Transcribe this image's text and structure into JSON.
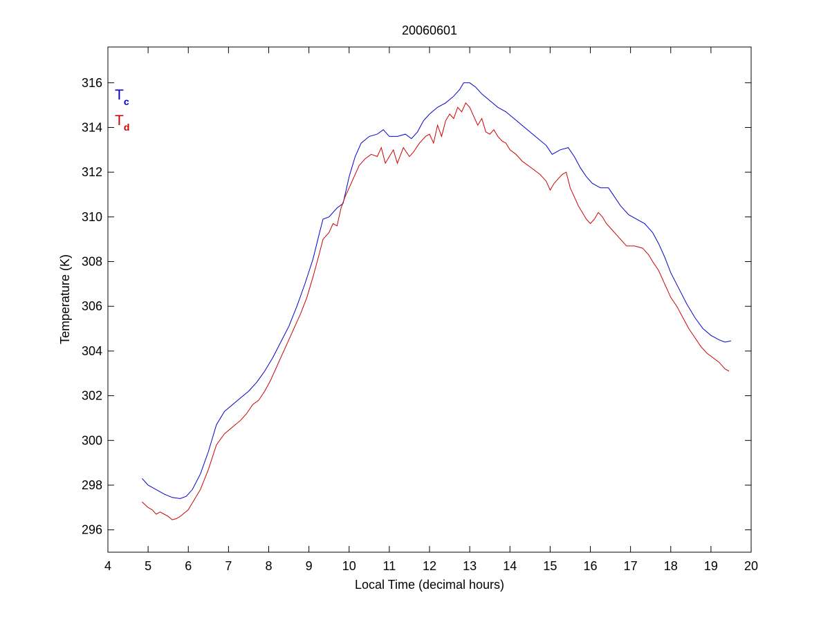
{
  "chart_data": {
    "type": "line",
    "title": "20060601",
    "xlabel": "Local Time (decimal hours)",
    "ylabel": "Temperature (K)",
    "xlim": [
      4,
      20
    ],
    "ylim": [
      295,
      317.6
    ],
    "xticks": [
      4,
      5,
      6,
      7,
      8,
      9,
      10,
      11,
      12,
      13,
      14,
      15,
      16,
      17,
      18,
      19,
      20
    ],
    "yticks": [
      296,
      298,
      300,
      302,
      304,
      306,
      308,
      310,
      312,
      314,
      316
    ],
    "grid": false,
    "legend_position": "top-left",
    "series": [
      {
        "name": "T",
        "subscript": "c",
        "color": "#0000cc",
        "points": [
          [
            4.85,
            298.3
          ],
          [
            5.0,
            298.0
          ],
          [
            5.2,
            297.8
          ],
          [
            5.4,
            297.6
          ],
          [
            5.6,
            297.45
          ],
          [
            5.8,
            297.4
          ],
          [
            5.95,
            297.5
          ],
          [
            6.1,
            297.8
          ],
          [
            6.3,
            298.5
          ],
          [
            6.5,
            299.5
          ],
          [
            6.7,
            300.7
          ],
          [
            6.9,
            301.3
          ],
          [
            7.1,
            301.6
          ],
          [
            7.3,
            301.9
          ],
          [
            7.5,
            302.2
          ],
          [
            7.7,
            302.6
          ],
          [
            7.9,
            303.1
          ],
          [
            8.1,
            303.7
          ],
          [
            8.3,
            304.4
          ],
          [
            8.5,
            305.1
          ],
          [
            8.7,
            306.0
          ],
          [
            8.9,
            307.0
          ],
          [
            9.1,
            308.1
          ],
          [
            9.25,
            309.2
          ],
          [
            9.35,
            309.9
          ],
          [
            9.5,
            310.0
          ],
          [
            9.7,
            310.4
          ],
          [
            9.85,
            310.6
          ],
          [
            10.0,
            311.8
          ],
          [
            10.15,
            312.7
          ],
          [
            10.3,
            313.3
          ],
          [
            10.5,
            313.6
          ],
          [
            10.7,
            313.7
          ],
          [
            10.85,
            313.9
          ],
          [
            11.0,
            313.6
          ],
          [
            11.2,
            313.6
          ],
          [
            11.4,
            313.7
          ],
          [
            11.55,
            313.5
          ],
          [
            11.7,
            313.8
          ],
          [
            11.85,
            314.3
          ],
          [
            12.0,
            314.6
          ],
          [
            12.2,
            314.9
          ],
          [
            12.4,
            315.1
          ],
          [
            12.6,
            315.4
          ],
          [
            12.75,
            315.7
          ],
          [
            12.85,
            316.0
          ],
          [
            13.0,
            316.0
          ],
          [
            13.15,
            315.8
          ],
          [
            13.3,
            315.5
          ],
          [
            13.5,
            315.2
          ],
          [
            13.7,
            314.9
          ],
          [
            13.9,
            314.7
          ],
          [
            14.1,
            314.4
          ],
          [
            14.3,
            314.1
          ],
          [
            14.5,
            313.8
          ],
          [
            14.7,
            313.5
          ],
          [
            14.9,
            313.2
          ],
          [
            15.05,
            312.8
          ],
          [
            15.25,
            313.0
          ],
          [
            15.45,
            313.1
          ],
          [
            15.6,
            312.7
          ],
          [
            15.75,
            312.2
          ],
          [
            15.9,
            311.8
          ],
          [
            16.05,
            311.5
          ],
          [
            16.25,
            311.3
          ],
          [
            16.45,
            311.3
          ],
          [
            16.6,
            310.9
          ],
          [
            16.75,
            310.5
          ],
          [
            16.95,
            310.1
          ],
          [
            17.15,
            309.9
          ],
          [
            17.35,
            309.7
          ],
          [
            17.55,
            309.3
          ],
          [
            17.7,
            308.8
          ],
          [
            17.85,
            308.2
          ],
          [
            18.0,
            307.5
          ],
          [
            18.2,
            306.8
          ],
          [
            18.4,
            306.1
          ],
          [
            18.6,
            305.5
          ],
          [
            18.8,
            305.0
          ],
          [
            19.0,
            304.7
          ],
          [
            19.2,
            304.5
          ],
          [
            19.35,
            304.4
          ],
          [
            19.5,
            304.45
          ]
        ]
      },
      {
        "name": "T",
        "subscript": "d",
        "color": "#cc0000",
        "points": [
          [
            4.85,
            297.25
          ],
          [
            5.0,
            297.0
          ],
          [
            5.1,
            296.9
          ],
          [
            5.2,
            296.7
          ],
          [
            5.3,
            296.8
          ],
          [
            5.4,
            296.7
          ],
          [
            5.5,
            296.6
          ],
          [
            5.6,
            296.45
          ],
          [
            5.7,
            296.5
          ],
          [
            5.8,
            296.6
          ],
          [
            5.9,
            296.75
          ],
          [
            6.0,
            296.9
          ],
          [
            6.1,
            297.2
          ],
          [
            6.3,
            297.8
          ],
          [
            6.5,
            298.7
          ],
          [
            6.7,
            299.8
          ],
          [
            6.9,
            300.3
          ],
          [
            7.1,
            300.6
          ],
          [
            7.3,
            300.9
          ],
          [
            7.45,
            301.2
          ],
          [
            7.6,
            301.6
          ],
          [
            7.75,
            301.8
          ],
          [
            7.9,
            302.2
          ],
          [
            8.05,
            302.7
          ],
          [
            8.2,
            303.3
          ],
          [
            8.35,
            303.9
          ],
          [
            8.5,
            304.5
          ],
          [
            8.65,
            305.1
          ],
          [
            8.8,
            305.7
          ],
          [
            8.95,
            306.4
          ],
          [
            9.1,
            307.3
          ],
          [
            9.25,
            308.3
          ],
          [
            9.35,
            309.0
          ],
          [
            9.5,
            309.3
          ],
          [
            9.6,
            309.7
          ],
          [
            9.7,
            309.6
          ],
          [
            9.8,
            310.4
          ],
          [
            9.9,
            310.9
          ],
          [
            10.0,
            311.3
          ],
          [
            10.1,
            311.7
          ],
          [
            10.25,
            312.3
          ],
          [
            10.4,
            312.6
          ],
          [
            10.55,
            312.8
          ],
          [
            10.7,
            312.7
          ],
          [
            10.8,
            313.1
          ],
          [
            10.9,
            312.4
          ],
          [
            11.0,
            312.7
          ],
          [
            11.1,
            313.0
          ],
          [
            11.2,
            312.4
          ],
          [
            11.35,
            313.1
          ],
          [
            11.5,
            312.7
          ],
          [
            11.6,
            312.9
          ],
          [
            11.75,
            313.3
          ],
          [
            11.9,
            313.6
          ],
          [
            12.0,
            313.7
          ],
          [
            12.1,
            313.3
          ],
          [
            12.2,
            314.1
          ],
          [
            12.3,
            313.6
          ],
          [
            12.4,
            314.3
          ],
          [
            12.5,
            314.6
          ],
          [
            12.6,
            314.4
          ],
          [
            12.7,
            314.9
          ],
          [
            12.8,
            314.7
          ],
          [
            12.9,
            315.1
          ],
          [
            13.0,
            314.9
          ],
          [
            13.1,
            314.5
          ],
          [
            13.2,
            314.1
          ],
          [
            13.3,
            314.4
          ],
          [
            13.4,
            313.8
          ],
          [
            13.5,
            313.7
          ],
          [
            13.6,
            313.9
          ],
          [
            13.7,
            313.6
          ],
          [
            13.8,
            313.4
          ],
          [
            13.9,
            313.3
          ],
          [
            14.0,
            313.0
          ],
          [
            14.15,
            312.8
          ],
          [
            14.3,
            312.5
          ],
          [
            14.45,
            312.3
          ],
          [
            14.6,
            312.1
          ],
          [
            14.75,
            311.9
          ],
          [
            14.9,
            311.6
          ],
          [
            15.0,
            311.2
          ],
          [
            15.1,
            311.5
          ],
          [
            15.2,
            311.7
          ],
          [
            15.3,
            311.9
          ],
          [
            15.4,
            312.0
          ],
          [
            15.5,
            311.3
          ],
          [
            15.6,
            310.9
          ],
          [
            15.7,
            310.5
          ],
          [
            15.8,
            310.2
          ],
          [
            15.9,
            309.9
          ],
          [
            16.0,
            309.7
          ],
          [
            16.1,
            309.9
          ],
          [
            16.2,
            310.2
          ],
          [
            16.3,
            310.0
          ],
          [
            16.4,
            309.7
          ],
          [
            16.5,
            309.5
          ],
          [
            16.6,
            309.3
          ],
          [
            16.7,
            309.1
          ],
          [
            16.8,
            308.9
          ],
          [
            16.9,
            308.7
          ],
          [
            17.1,
            308.7
          ],
          [
            17.3,
            308.6
          ],
          [
            17.45,
            308.3
          ],
          [
            17.55,
            308.0
          ],
          [
            17.7,
            307.6
          ],
          [
            17.85,
            307.0
          ],
          [
            18.0,
            306.4
          ],
          [
            18.15,
            306.0
          ],
          [
            18.3,
            305.5
          ],
          [
            18.45,
            305.0
          ],
          [
            18.6,
            304.6
          ],
          [
            18.75,
            304.2
          ],
          [
            18.9,
            303.9
          ],
          [
            19.05,
            303.7
          ],
          [
            19.2,
            303.5
          ],
          [
            19.35,
            303.2
          ],
          [
            19.45,
            303.1
          ]
        ]
      }
    ]
  }
}
